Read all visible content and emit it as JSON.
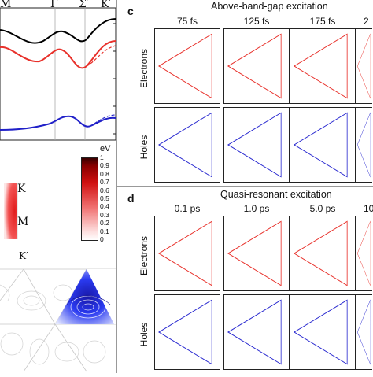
{
  "band_panel": {
    "kpoints": [
      "M",
      "Γ",
      "Σ′",
      "K′"
    ]
  },
  "colorbar": {
    "unit": "eV",
    "ticks": [
      "1",
      "0.9",
      "0.8",
      "0.7",
      "0.6",
      "0.5",
      "0.4",
      "0.3",
      "0.2",
      "0.1",
      "0"
    ],
    "color_high": "#8b0000",
    "color_low": "#ffffff"
  },
  "bz_panel": {
    "labels": [
      "K",
      "M",
      "K′"
    ]
  },
  "panel_c": {
    "letter": "c",
    "title": "Above-band-gap excitation",
    "times": [
      "75 fs",
      "125 fs",
      "175 fs",
      "2"
    ],
    "rows": [
      "Electrons",
      "Holes"
    ]
  },
  "panel_d": {
    "letter": "d",
    "title": "Quasi-resonant excitation",
    "times": [
      "0.1 ps",
      "1.0 ps",
      "5.0 ps",
      "10"
    ],
    "rows": [
      "Electrons",
      "Holes"
    ]
  },
  "colors": {
    "electron": "#e8302a",
    "hole": "#2a2ad0",
    "black_band": "#000000"
  }
}
